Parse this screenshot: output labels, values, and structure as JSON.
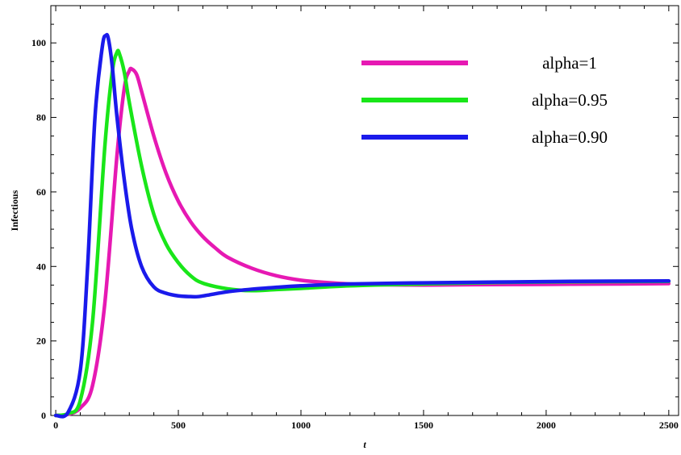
{
  "chart_data": {
    "type": "line",
    "title": "",
    "xlabel": "t",
    "ylabel": "Infectious",
    "xlim": [
      -20,
      2540
    ],
    "ylim": [
      0,
      110
    ],
    "xticks": [
      0,
      500,
      1000,
      1500,
      2000,
      2500
    ],
    "yticks": [
      0,
      20,
      40,
      60,
      80,
      100
    ],
    "grid": false,
    "legend_position": "top-right",
    "series": [
      {
        "name": "alpha=1",
        "color": "#e619b3",
        "x": [
          0,
          50,
          100,
          150,
          200,
          250,
          280,
          300,
          310,
          330,
          350,
          400,
          450,
          500,
          550,
          600,
          650,
          700,
          800,
          900,
          1000,
          1100,
          1200,
          1300,
          1500,
          1700,
          2000,
          2300,
          2500
        ],
        "y": [
          0,
          0.3,
          2,
          8,
          30,
          70,
          88,
          92.5,
          93,
          91.5,
          87,
          75,
          65,
          57.5,
          52,
          48,
          45,
          42.5,
          39.5,
          37.5,
          36.3,
          35.7,
          35.3,
          35.1,
          35.0,
          35.1,
          35.2,
          35.3,
          35.4
        ]
      },
      {
        "name": "alpha=0.95",
        "color": "#19e619",
        "x": [
          0,
          50,
          100,
          150,
          200,
          230,
          250,
          260,
          280,
          300,
          350,
          400,
          450,
          500,
          550,
          600,
          700,
          800,
          900,
          1000,
          1200,
          1500,
          1800,
          2100,
          2500
        ],
        "y": [
          0,
          0.5,
          4,
          25,
          72,
          92,
          97.5,
          97,
          92,
          84,
          67,
          54,
          46,
          41,
          37.5,
          35.5,
          34,
          33.5,
          33.8,
          34.1,
          34.8,
          35.3,
          35.7,
          35.9,
          36.0
        ]
      },
      {
        "name": "alpha=0.90",
        "color": "#1a1aeb",
        "x": [
          0,
          50,
          100,
          130,
          160,
          190,
          205,
          215,
          230,
          250,
          280,
          310,
          350,
          400,
          450,
          500,
          550,
          580,
          620,
          700,
          800,
          900,
          1000,
          1200,
          1500,
          1800,
          2100,
          2500
        ],
        "y": [
          0,
          0.8,
          12,
          40,
          80,
          99,
          102,
          101,
          94,
          80,
          63,
          50,
          40,
          34.5,
          32.8,
          32.1,
          31.9,
          31.9,
          32.3,
          33.2,
          33.9,
          34.4,
          34.8,
          35.3,
          35.6,
          35.8,
          36.0,
          36.1
        ]
      }
    ]
  }
}
